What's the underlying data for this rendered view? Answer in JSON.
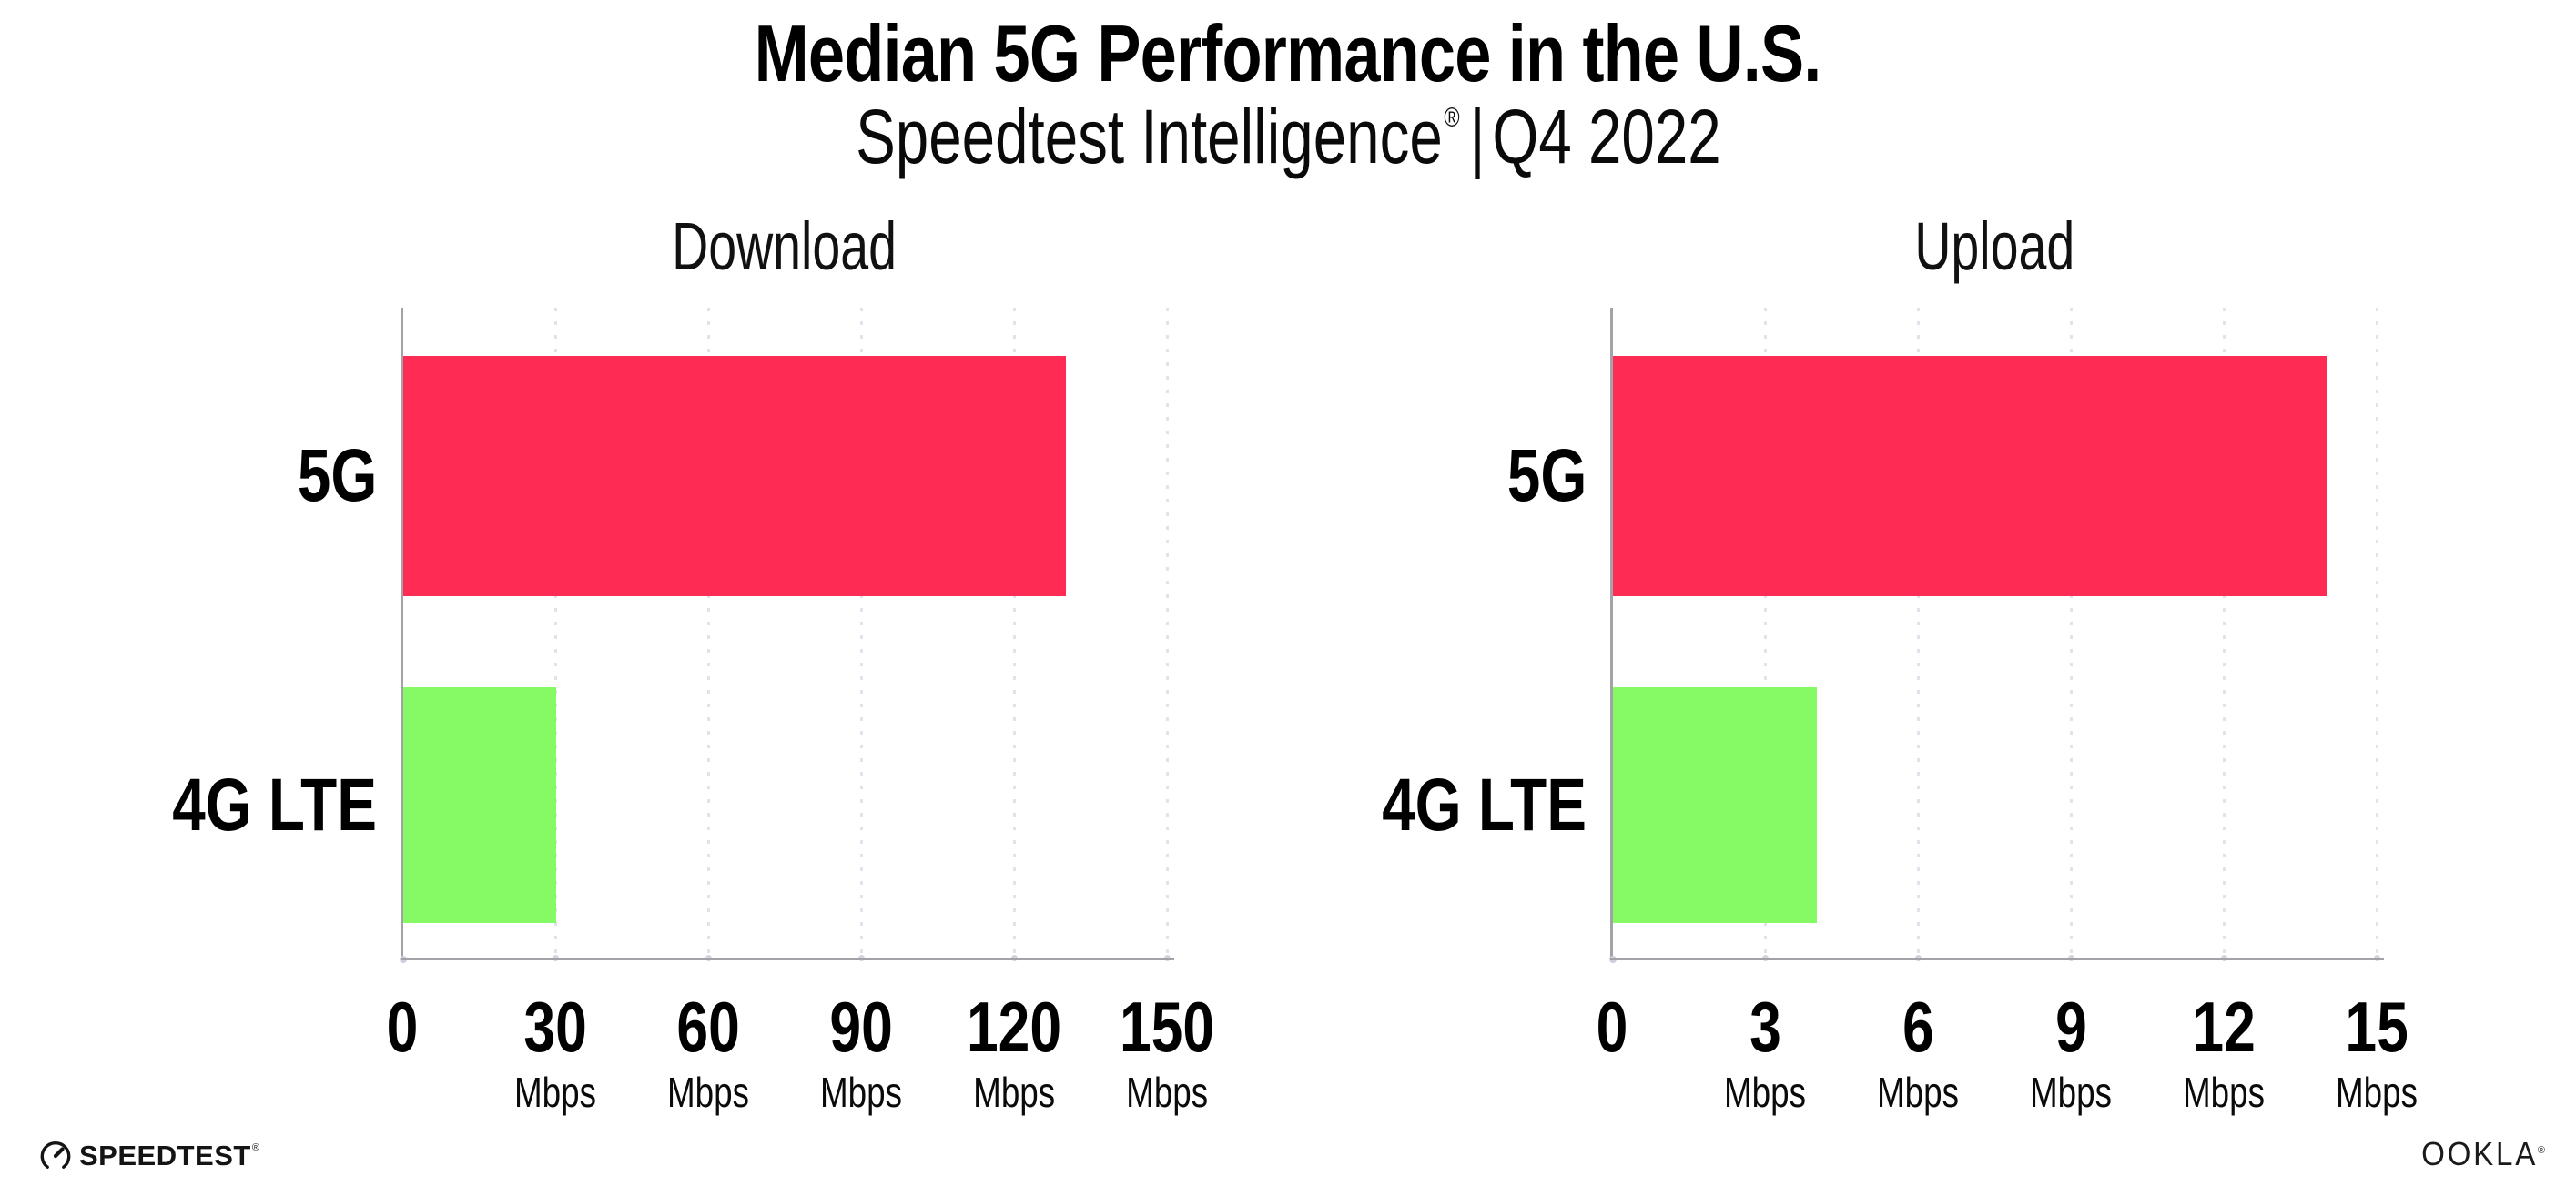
{
  "header": {
    "title": "Median 5G Performance in the U.S.",
    "subtitle_brand": "Speedtest Intelligence",
    "subtitle_reg": "®",
    "subtitle_divider": "|",
    "subtitle_period": "Q4 2022"
  },
  "chart_data": [
    {
      "type": "bar",
      "orientation": "horizontal",
      "title": "Download",
      "categories": [
        "5G",
        "4G LTE"
      ],
      "values": [
        130,
        30
      ],
      "unit": "Mbps",
      "xlim": [
        0,
        150
      ],
      "xticks": [
        0,
        30,
        60,
        90,
        120,
        150
      ],
      "tick_unit": "Mbps",
      "bar_colors": [
        "#fe2c55",
        "#85fa64"
      ],
      "grid": "vertical-dotted",
      "legend": "none"
    },
    {
      "type": "bar",
      "orientation": "horizontal",
      "title": "Upload",
      "categories": [
        "5G",
        "4G LTE"
      ],
      "values": [
        14,
        4
      ],
      "unit": "Mbps",
      "xlim": [
        0,
        15
      ],
      "xticks": [
        0,
        3,
        6,
        9,
        12,
        15
      ],
      "tick_unit": "Mbps",
      "bar_colors": [
        "#fe2c55",
        "#85fa64"
      ],
      "grid": "vertical-dotted",
      "legend": "none"
    }
  ],
  "footer": {
    "speedtest_wordmark": "SPEEDTEST",
    "speedtest_reg": "®",
    "ookla_wordmark": "OOKLA",
    "ookla_reg": "®"
  },
  "colors": {
    "bar_5g": "#fe2c55",
    "bar_4g_lte": "#85fa64",
    "axis": "#a2a2a8",
    "gridline": "#e2e2ec",
    "text": "#000000"
  }
}
